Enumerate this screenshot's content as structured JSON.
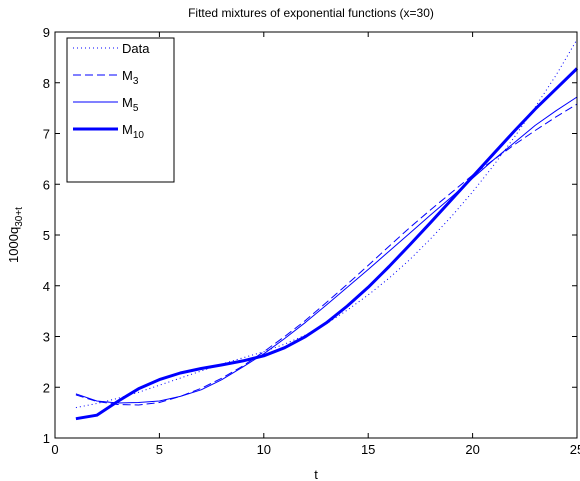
{
  "chart_data": {
    "type": "line",
    "title": "Fitted mixtures of exponential functions (x=30)",
    "xlabel": "t",
    "ylabel": {
      "base": "1000q",
      "sub": "30+t"
    },
    "xlim": [
      0,
      25
    ],
    "ylim": [
      1,
      9
    ],
    "xticks": [
      0,
      5,
      10,
      15,
      20,
      25
    ],
    "yticks": [
      1,
      2,
      3,
      4,
      5,
      6,
      7,
      8,
      9
    ],
    "grid": false,
    "legend_position": "top-left",
    "color": "#0000ff",
    "x": [
      1,
      2,
      3,
      4,
      5,
      6,
      7,
      8,
      9,
      10,
      11,
      12,
      13,
      14,
      15,
      16,
      17,
      18,
      19,
      20,
      21,
      22,
      23,
      24,
      25
    ],
    "series": [
      {
        "name": "Data",
        "name_sub": "",
        "style": "dotted",
        "width": 1,
        "values": [
          1.6,
          1.68,
          1.78,
          1.9,
          2.04,
          2.18,
          2.32,
          2.46,
          2.58,
          2.7,
          2.85,
          3.03,
          3.25,
          3.52,
          3.82,
          4.15,
          4.52,
          4.93,
          5.37,
          5.85,
          6.37,
          6.93,
          7.52,
          8.15,
          8.85
        ]
      },
      {
        "name": "M",
        "name_sub": "3",
        "style": "dashed",
        "width": 1,
        "values": [
          1.85,
          1.72,
          1.66,
          1.65,
          1.7,
          1.82,
          1.98,
          2.18,
          2.42,
          2.7,
          3.0,
          3.32,
          3.67,
          4.03,
          4.4,
          4.78,
          5.15,
          5.5,
          5.84,
          6.18,
          6.48,
          6.78,
          7.06,
          7.33,
          7.58
        ]
      },
      {
        "name": "M",
        "name_sub": "5",
        "style": "solid",
        "width": 1,
        "values": [
          1.87,
          1.73,
          1.69,
          1.7,
          1.73,
          1.82,
          1.95,
          2.15,
          2.4,
          2.66,
          2.96,
          3.28,
          3.62,
          3.97,
          4.32,
          4.68,
          5.04,
          5.4,
          5.75,
          6.12,
          6.48,
          6.82,
          7.16,
          7.45,
          7.72
        ]
      },
      {
        "name": "M",
        "name_sub": "10",
        "style": "solid",
        "width": 3,
        "values": [
          1.38,
          1.45,
          1.72,
          1.97,
          2.15,
          2.28,
          2.37,
          2.44,
          2.52,
          2.62,
          2.78,
          3.0,
          3.27,
          3.6,
          3.97,
          4.38,
          4.81,
          5.25,
          5.7,
          6.15,
          6.6,
          7.05,
          7.48,
          7.88,
          8.28
        ]
      }
    ]
  }
}
